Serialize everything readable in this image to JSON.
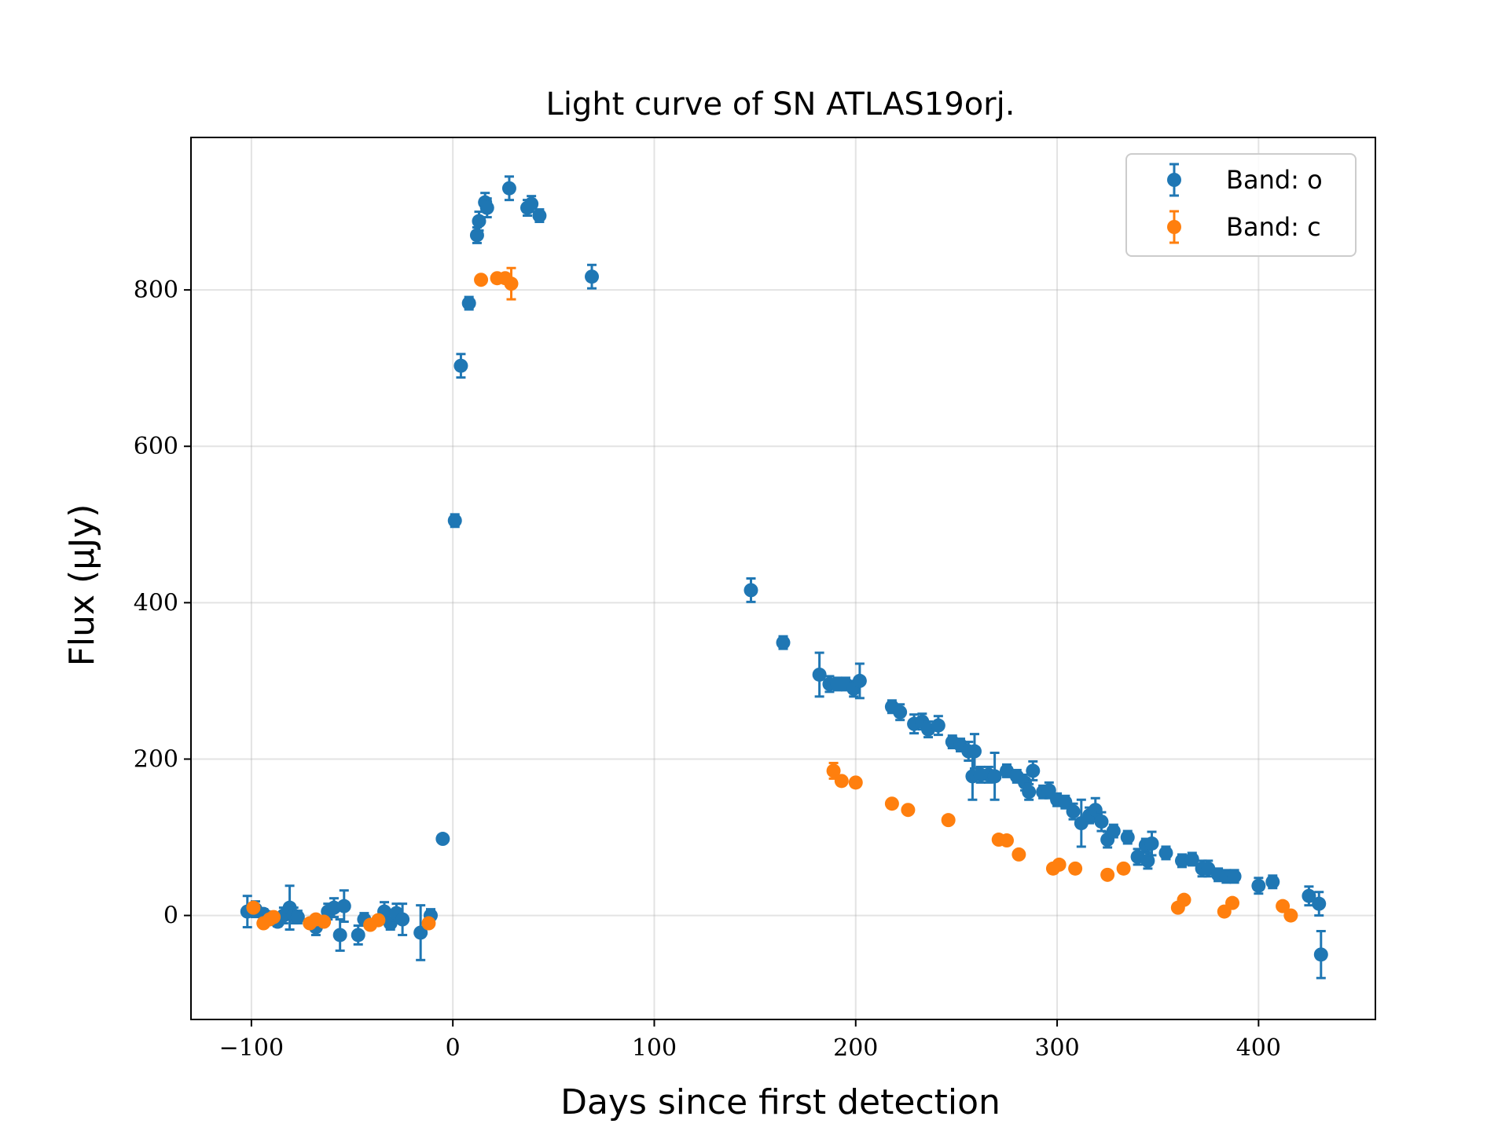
{
  "chart_data": {
    "type": "scatter",
    "title": "Light curve of SN ATLAS19orj.",
    "xlabel": "Days since first detection",
    "ylabel": "Flux (μJy)",
    "xlim": [
      -130,
      458
    ],
    "ylim": [
      -133,
      995
    ],
    "xticks": [
      -100,
      0,
      100,
      200,
      300,
      400
    ],
    "xtick_labels": [
      "−100",
      "0",
      "100",
      "200",
      "300",
      "400"
    ],
    "yticks": [
      0,
      200,
      400,
      600,
      800
    ],
    "ytick_labels": [
      "0",
      "200",
      "400",
      "600",
      "800"
    ],
    "grid": true,
    "legend_position": "top-right",
    "series": [
      {
        "name": "Band: o",
        "color": "#1f77b4",
        "points": [
          [
            -102,
            5,
            20
          ],
          [
            -98,
            8,
            10
          ],
          [
            -94,
            2,
            6
          ],
          [
            -90,
            -3,
            8
          ],
          [
            -87,
            -8,
            6
          ],
          [
            -84,
            0,
            10
          ],
          [
            -81,
            10,
            28
          ],
          [
            -79,
            0,
            10
          ],
          [
            -77,
            -2,
            8
          ],
          [
            -68,
            -15,
            10
          ],
          [
            -62,
            5,
            10
          ],
          [
            -59,
            10,
            12
          ],
          [
            -56,
            -25,
            20
          ],
          [
            -54,
            12,
            20
          ],
          [
            -47,
            -25,
            12
          ],
          [
            -44,
            -5,
            8
          ],
          [
            -34,
            5,
            12
          ],
          [
            -31,
            -10,
            8
          ],
          [
            -28,
            3,
            12
          ],
          [
            -25,
            -5,
            20
          ],
          [
            -16,
            -22,
            35
          ],
          [
            -11,
            0,
            8
          ],
          [
            -5,
            98,
            5
          ],
          [
            1,
            505,
            8
          ],
          [
            4,
            703,
            15
          ],
          [
            8,
            783,
            8
          ],
          [
            12,
            870,
            10
          ],
          [
            13,
            888,
            12
          ],
          [
            16,
            912,
            12
          ],
          [
            17,
            905,
            12
          ],
          [
            28,
            930,
            15
          ],
          [
            37,
            905,
            10
          ],
          [
            39,
            910,
            10
          ],
          [
            43,
            895,
            8
          ],
          [
            69,
            817,
            15
          ],
          [
            148,
            416,
            15
          ],
          [
            164,
            349,
            8
          ],
          [
            182,
            308,
            28
          ],
          [
            187,
            296,
            10
          ],
          [
            191,
            296,
            8
          ],
          [
            195,
            296,
            8
          ],
          [
            199,
            290,
            10
          ],
          [
            202,
            300,
            22
          ],
          [
            218,
            267,
            8
          ],
          [
            222,
            260,
            10
          ],
          [
            229,
            245,
            12
          ],
          [
            233,
            248,
            10
          ],
          [
            236,
            238,
            10
          ],
          [
            241,
            243,
            12
          ],
          [
            248,
            222,
            8
          ],
          [
            252,
            218,
            8
          ],
          [
            256,
            210,
            12
          ],
          [
            258,
            178,
            30
          ],
          [
            259,
            210,
            22
          ],
          [
            262,
            180,
            10
          ],
          [
            266,
            180,
            10
          ],
          [
            269,
            178,
            30
          ],
          [
            275,
            185,
            8
          ],
          [
            280,
            178,
            8
          ],
          [
            284,
            170,
            10
          ],
          [
            286,
            158,
            10
          ],
          [
            288,
            185,
            12
          ],
          [
            293,
            158,
            8
          ],
          [
            296,
            160,
            10
          ],
          [
            300,
            148,
            8
          ],
          [
            304,
            145,
            8
          ],
          [
            308,
            133,
            10
          ],
          [
            312,
            118,
            30
          ],
          [
            316,
            128,
            10
          ],
          [
            319,
            135,
            15
          ],
          [
            322,
            120,
            12
          ],
          [
            325,
            97,
            10
          ],
          [
            328,
            108,
            8
          ],
          [
            335,
            100,
            8
          ],
          [
            340,
            75,
            10
          ],
          [
            344,
            90,
            8
          ],
          [
            345,
            70,
            10
          ],
          [
            347,
            92,
            15
          ],
          [
            354,
            80,
            8
          ],
          [
            362,
            70,
            8
          ],
          [
            367,
            72,
            8
          ],
          [
            372,
            60,
            10
          ],
          [
            375,
            60,
            10
          ],
          [
            380,
            52,
            8
          ],
          [
            384,
            50,
            8
          ],
          [
            388,
            50,
            8
          ],
          [
            400,
            38,
            10
          ],
          [
            407,
            43,
            8
          ],
          [
            425,
            25,
            12
          ],
          [
            430,
            15,
            15
          ],
          [
            431,
            -50,
            30
          ]
        ]
      },
      {
        "name": "Band: c",
        "color": "#ff7f0e",
        "points": [
          [
            -99,
            10,
            0
          ],
          [
            -94,
            -10,
            0
          ],
          [
            -91,
            -5,
            0
          ],
          [
            -89,
            -2,
            0
          ],
          [
            -71,
            -10,
            0
          ],
          [
            -68,
            -5,
            0
          ],
          [
            -64,
            -8,
            0
          ],
          [
            -41,
            -12,
            0
          ],
          [
            -37,
            -6,
            0
          ],
          [
            -12,
            -10,
            0
          ],
          [
            14,
            813,
            0
          ],
          [
            22,
            815,
            0
          ],
          [
            26,
            815,
            0
          ],
          [
            29,
            808,
            20
          ],
          [
            189,
            185,
            10
          ],
          [
            193,
            172,
            0
          ],
          [
            200,
            170,
            0
          ],
          [
            218,
            143,
            0
          ],
          [
            226,
            135,
            0
          ],
          [
            246,
            122,
            0
          ],
          [
            271,
            97,
            0
          ],
          [
            275,
            96,
            0
          ],
          [
            281,
            78,
            0
          ],
          [
            298,
            60,
            0
          ],
          [
            301,
            65,
            0
          ],
          [
            309,
            60,
            0
          ],
          [
            325,
            52,
            0
          ],
          [
            333,
            60,
            0
          ],
          [
            360,
            10,
            0
          ],
          [
            363,
            20,
            0
          ],
          [
            383,
            5,
            0
          ],
          [
            387,
            16,
            0
          ],
          [
            412,
            12,
            0
          ],
          [
            416,
            0,
            0
          ]
        ]
      }
    ]
  }
}
